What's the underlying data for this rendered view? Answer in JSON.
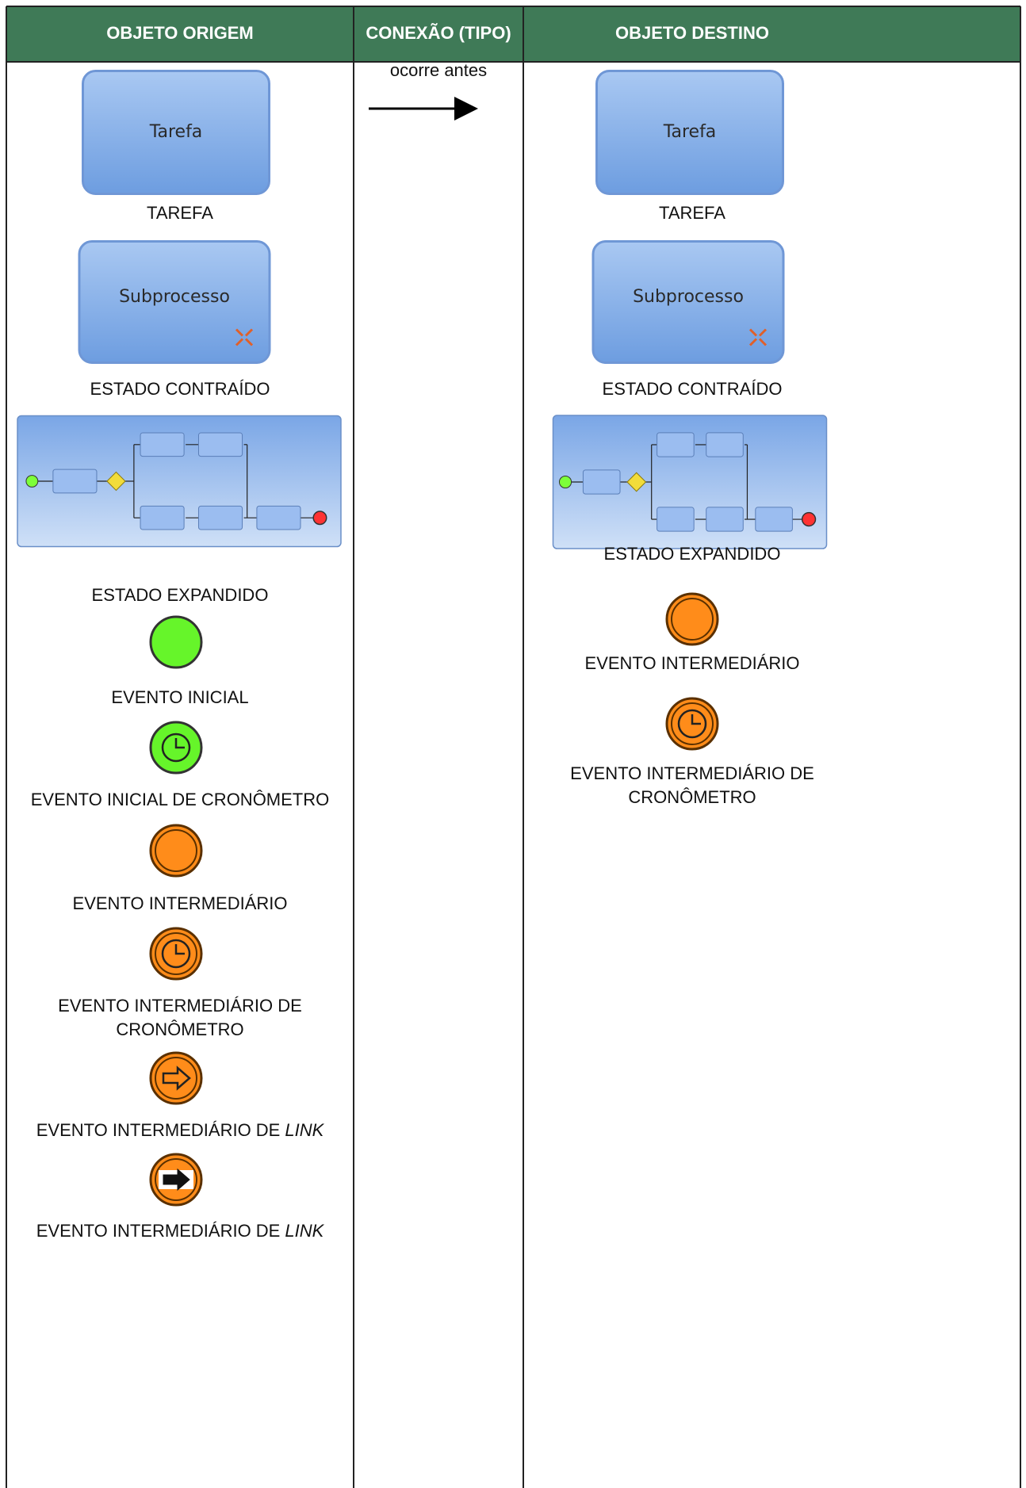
{
  "header": {
    "columns": [
      "OBJETO ORIGEM",
      "CONEXÃO (TIPO)",
      "OBJETO DESTINO"
    ]
  },
  "connection": {
    "label": "ocorre antes"
  },
  "origin": {
    "items": [
      {
        "icon": "task",
        "icon_text": "Tarefa",
        "label": [
          "TAREFA"
        ]
      },
      {
        "icon": "subprocess",
        "icon_text": "Subprocesso",
        "label": [
          "ESTADO CONTRAÍDO"
        ]
      },
      {
        "icon": "expanded",
        "label": [
          "ESTADO EXPANDIDO"
        ]
      },
      {
        "icon": "start",
        "label": [
          "EVENTO INICIAL"
        ]
      },
      {
        "icon": "start-timer",
        "label": [
          "EVENTO INICIAL DE CRONÔMETRO"
        ]
      },
      {
        "icon": "intermediate",
        "label": [
          "EVENTO INTERMEDIÁRIO"
        ]
      },
      {
        "icon": "intermediate-timer",
        "label": [
          "EVENTO INTERMEDIÁRIO DE",
          "CRONÔMETRO"
        ]
      },
      {
        "icon": "link",
        "label": [
          "EVENTO INTERMEDIÁRIO DE"
        ],
        "label_italic": "LINK"
      },
      {
        "icon": "link-throw",
        "label": [
          "EVENTO INTERMEDIÁRIO DE"
        ],
        "label_italic": "LINK"
      }
    ]
  },
  "destination": {
    "items": [
      {
        "icon": "task",
        "icon_text": "Tarefa",
        "label": [
          "TAREFA"
        ]
      },
      {
        "icon": "subprocess",
        "icon_text": "Subprocesso",
        "label": [
          "ESTADO CONTRAÍDO"
        ]
      },
      {
        "icon": "expanded",
        "label": [
          "ESTADO EXPANDIDO"
        ]
      },
      {
        "icon": "intermediate",
        "label": [
          "EVENTO INTERMEDIÁRIO"
        ]
      },
      {
        "icon": "intermediate-timer",
        "label": [
          "EVENTO INTERMEDIÁRIO DE",
          "CRONÔMETRO"
        ]
      }
    ]
  }
}
